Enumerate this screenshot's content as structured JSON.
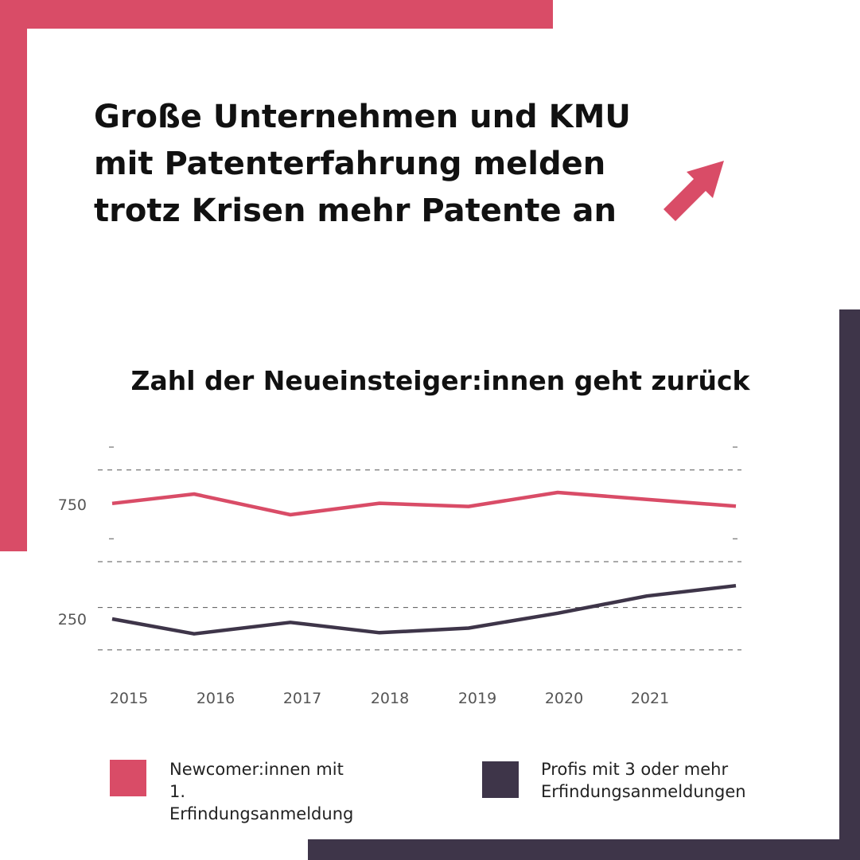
{
  "headline": "Große Unternehmen und KMU\nmit Patenterfahrung melden\ntrotz Krisen mehr Patente an",
  "icons": {
    "arrow": "arrow-up-right-icon"
  },
  "colors": {
    "accent": "#D94C67",
    "dark": "#3E3549",
    "text": "#111111",
    "gridline": "#555555",
    "tick_text": "#555555"
  },
  "chart_data": {
    "type": "line",
    "title": "Zahl der Neueinsteiger:innen geht zurück",
    "x": [
      2015,
      2015.92,
      2017,
      2018,
      2019,
      2020,
      2021,
      2022
    ],
    "x_tick_labels": [
      "2015",
      "2016",
      "2017",
      "2018",
      "2019",
      "2020",
      "2021"
    ],
    "y_tick_labels": [
      "750",
      "250"
    ],
    "grid": true,
    "legend_position": "bottom",
    "series": [
      {
        "name": "Newcomer:innen mit 1. Erfindungsanmeldung",
        "color": "#D94C67",
        "values": [
          754,
          795,
          705,
          755,
          741,
          802,
          772,
          742
        ]
      },
      {
        "name": "Profis mit 3 oder mehr Erfindungsanmeldungen",
        "color": "#3E3549",
        "values": [
          250,
          185,
          235,
          190,
          210,
          275,
          350,
          395
        ]
      }
    ]
  },
  "legend": [
    {
      "label": "Newcomer:innen mit 1.\nErfindungsanmeldung",
      "color": "#D94C67"
    },
    {
      "label": "Profis mit 3 oder mehr\nErfindungsanmeldungen",
      "color": "#3E3549"
    }
  ]
}
